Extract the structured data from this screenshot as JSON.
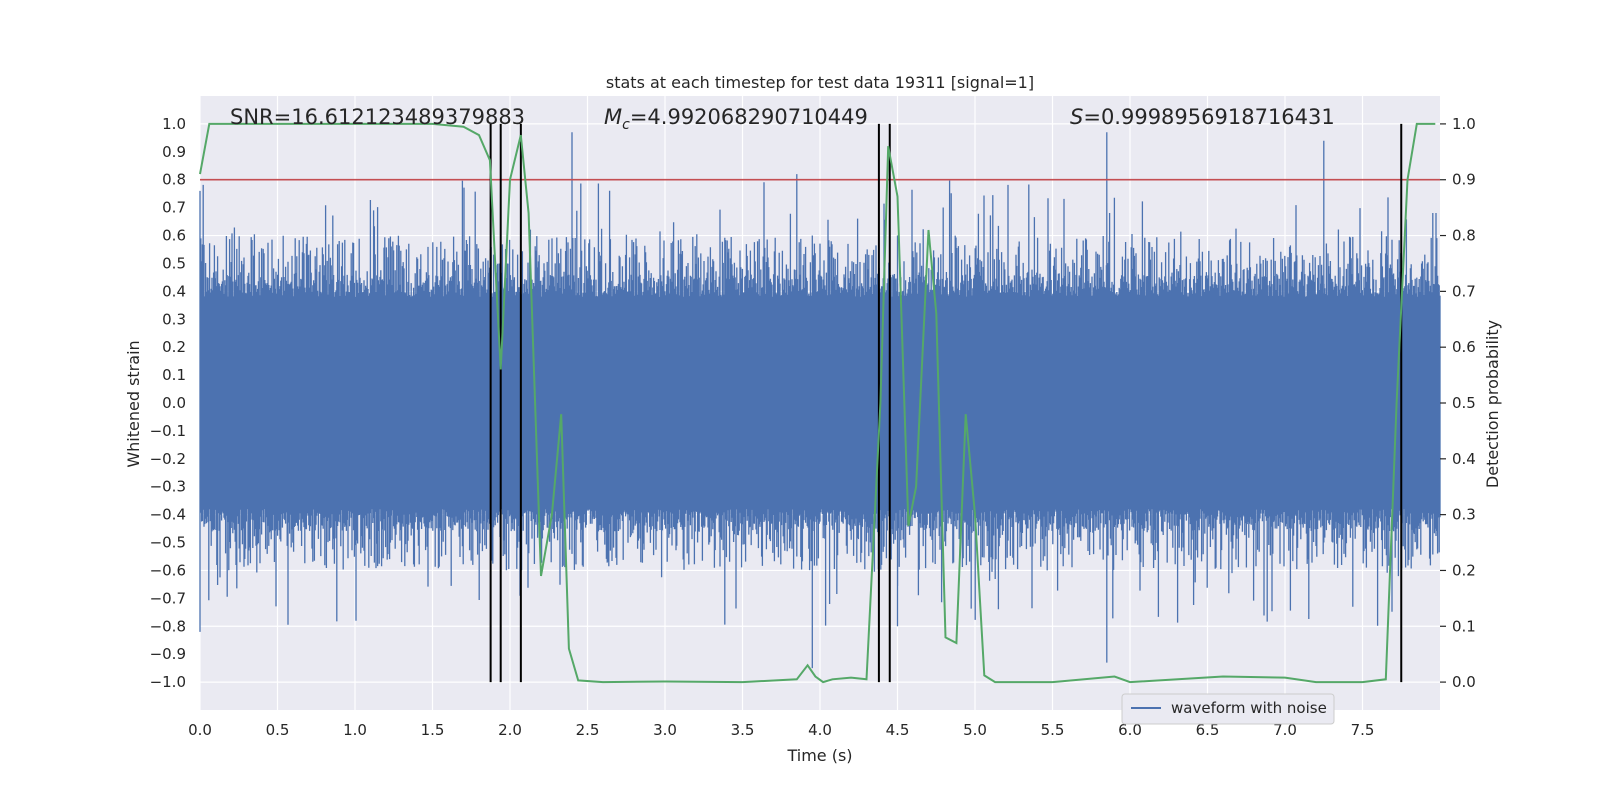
{
  "chart_data": {
    "type": "line",
    "title": "stats at each timestep for test data 19311 [signal=1]",
    "xlabel": "Time (s)",
    "ylabel": "Whitened strain",
    "y2label": "Detection probability",
    "xlim": [
      0.0,
      8.0
    ],
    "ylim": [
      -1.1,
      1.1
    ],
    "y2lim": [
      -0.05,
      1.05
    ],
    "x_ticks": [
      0.0,
      0.5,
      1.0,
      1.5,
      2.0,
      2.5,
      3.0,
      3.5,
      4.0,
      4.5,
      5.0,
      5.5,
      6.0,
      6.5,
      7.0,
      7.5
    ],
    "x_tick_labels": [
      "0.0",
      "0.5",
      "1.0",
      "1.5",
      "2.0",
      "2.5",
      "3.0",
      "3.5",
      "4.0",
      "4.5",
      "5.0",
      "5.5",
      "6.0",
      "6.5",
      "7.0",
      "7.5"
    ],
    "y_ticks": [
      1.0,
      0.9,
      0.8,
      0.7,
      0.6,
      0.5,
      0.4,
      0.3,
      0.2,
      0.1,
      0.0,
      -0.1,
      -0.2,
      -0.3,
      -0.4,
      -0.5,
      -0.6,
      -0.7,
      -0.8,
      -0.9,
      -1.0
    ],
    "y_tick_labels": [
      "1.0",
      "0.9",
      "0.8",
      "0.7",
      "0.6",
      "0.5",
      "0.4",
      "0.3",
      "0.2",
      "0.1",
      "0.0",
      "−0.1",
      "−0.2",
      "−0.3",
      "−0.4",
      "−0.5",
      "−0.6",
      "−0.7",
      "−0.8",
      "−0.9",
      "−1.0"
    ],
    "y2_ticks": [
      1.0,
      0.9,
      0.8,
      0.7,
      0.6,
      0.5,
      0.4,
      0.3,
      0.2,
      0.1,
      0.0
    ],
    "y2_tick_labels": [
      "1.0",
      "0.9",
      "0.8",
      "0.7",
      "0.6",
      "0.5",
      "0.4",
      "0.3",
      "0.2",
      "0.1",
      "0.0"
    ],
    "annotations": {
      "snr": "SNR=16.612123489379883",
      "mc_symbol": "M",
      "mc_sub": "c",
      "mc_value": "=4.992068290710449",
      "s_symbol": "S",
      "s_value": "=0.9998956918716431"
    },
    "legend": {
      "label": "waveform with noise",
      "position": "lower-center"
    },
    "threshold": {
      "value": 0.9,
      "axis": "y2",
      "color": "#c44e52"
    },
    "vertical_lines": [
      1.875,
      1.94,
      2.07,
      4.38,
      4.45,
      7.75
    ],
    "waveform": {
      "name": "waveform with noise",
      "color": "#4c72b0",
      "core_amplitude": 0.38,
      "outer_envelope": 0.6,
      "peaks": [
        0.97,
        0.95,
        0.96,
        -0.95
      ]
    },
    "detection_probability": {
      "name": "detection probability",
      "color": "#55a868",
      "x": [
        0.0,
        0.06,
        0.5,
        1.0,
        1.5,
        1.7,
        1.8,
        1.87,
        1.94,
        2.0,
        2.07,
        2.12,
        2.2,
        2.27,
        2.33,
        2.38,
        2.44,
        2.6,
        3.0,
        3.5,
        3.85,
        3.92,
        3.97,
        4.02,
        4.08,
        4.2,
        4.3,
        4.39,
        4.44,
        4.5,
        4.57,
        4.62,
        4.7,
        4.75,
        4.81,
        4.88,
        4.94,
        5.0,
        5.06,
        5.13,
        5.5,
        5.9,
        6.0,
        6.6,
        7.0,
        7.2,
        7.5,
        7.65,
        7.72,
        7.79,
        7.85,
        7.97
      ],
      "y": [
        0.91,
        1.0,
        1.0,
        1.0,
        1.0,
        0.995,
        0.98,
        0.935,
        0.56,
        0.9,
        0.98,
        0.84,
        0.19,
        0.3,
        0.48,
        0.06,
        0.003,
        0.0,
        0.001,
        0.0,
        0.005,
        0.03,
        0.01,
        0.0,
        0.005,
        0.008,
        0.005,
        0.5,
        0.96,
        0.87,
        0.28,
        0.35,
        0.81,
        0.66,
        0.08,
        0.07,
        0.48,
        0.3,
        0.012,
        0.0,
        0.0,
        0.01,
        0.0,
        0.01,
        0.008,
        0.0,
        0.0,
        0.005,
        0.5,
        0.9,
        1.0,
        1.0
      ]
    }
  }
}
